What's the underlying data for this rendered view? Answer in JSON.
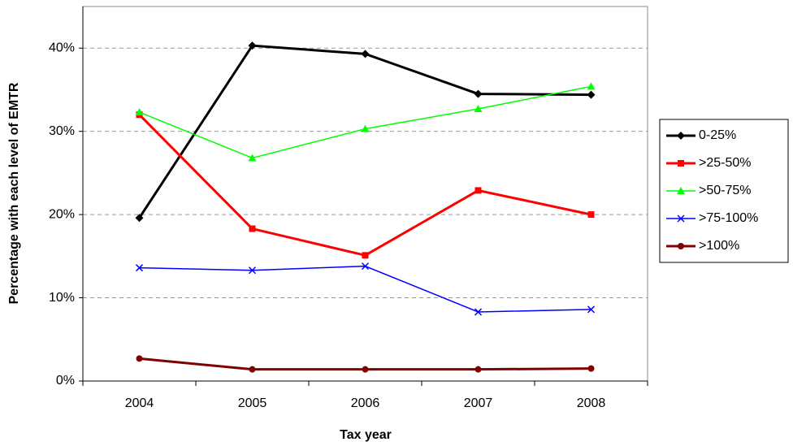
{
  "chart_data": {
    "type": "line",
    "x_label": "Tax year",
    "y_label": "Percentage with each level of EMTR",
    "categories": [
      "2004",
      "2005",
      "2006",
      "2007",
      "2008"
    ],
    "ylim": [
      0,
      45
    ],
    "yticks": [
      {
        "value": 0,
        "label": "0%"
      },
      {
        "value": 10,
        "label": "10%"
      },
      {
        "value": 20,
        "label": "20%"
      },
      {
        "value": 30,
        "label": "30%"
      },
      {
        "value": 40,
        "label": "40%"
      }
    ],
    "grid": true,
    "legend": "right",
    "series": [
      {
        "name": "0-25%",
        "color": "#000000",
        "marker": "diamond",
        "values": [
          19.6,
          40.3,
          39.3,
          34.5,
          34.4
        ]
      },
      {
        "name": ">25-50%",
        "color": "#ff0000",
        "marker": "square",
        "values": [
          32.0,
          18.3,
          15.1,
          22.9,
          20.0
        ]
      },
      {
        "name": ">50-75%",
        "color": "#00ff00",
        "marker": "triangle",
        "values": [
          32.3,
          26.8,
          30.3,
          32.7,
          35.4
        ]
      },
      {
        "name": ">75-100%",
        "color": "#0000ff",
        "marker": "x",
        "values": [
          13.6,
          13.3,
          13.8,
          8.3,
          8.6
        ]
      },
      {
        "name": ">100%",
        "color": "#800000",
        "marker": "circle",
        "values": [
          2.7,
          1.4,
          1.4,
          1.4,
          1.5
        ]
      }
    ]
  }
}
